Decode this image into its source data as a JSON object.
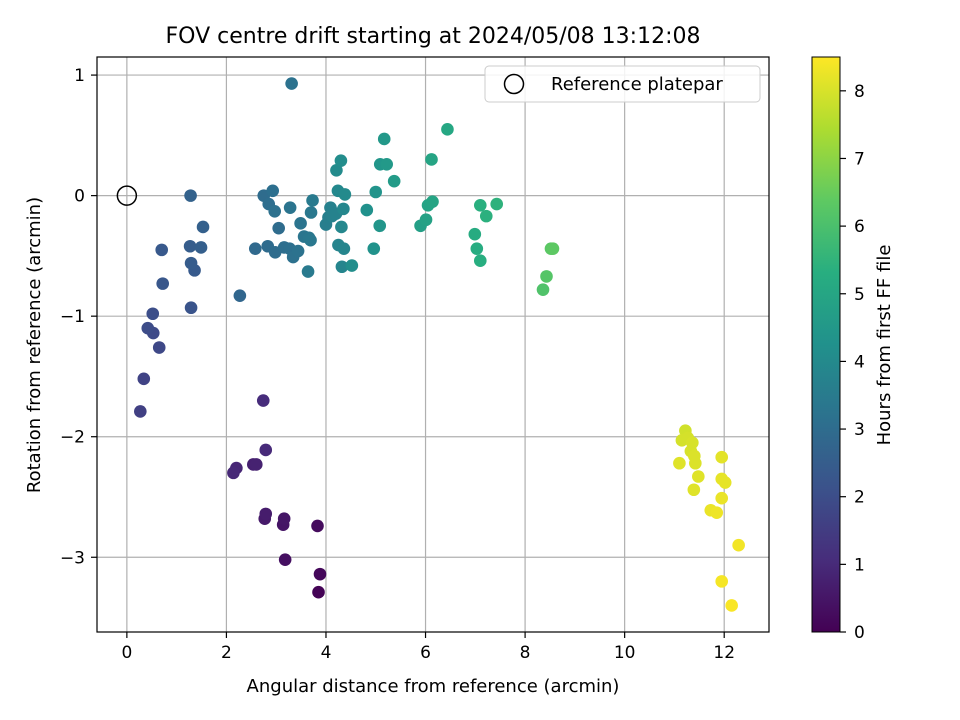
{
  "chart_data": {
    "type": "scatter",
    "title": "FOV centre drift starting at 2024/05/08 13:12:08",
    "xlabel": "Angular distance from reference (arcmin)",
    "ylabel": "Rotation from reference (arcmin)",
    "colorbar_label": "Hours from first FF file",
    "colormap": "viridis",
    "xlim": [
      -0.6,
      12.9
    ],
    "ylim": [
      -3.62,
      1.15
    ],
    "clim": [
      0,
      8.5
    ],
    "x_ticks": [
      0,
      2,
      4,
      6,
      8,
      10,
      12
    ],
    "y_ticks": [
      -3,
      -2,
      -1,
      0,
      1
    ],
    "colorbar_ticks": [
      0,
      1,
      2,
      3,
      4,
      5,
      6,
      7,
      8
    ],
    "grid": true,
    "legend": {
      "placement": "top-right",
      "entries": [
        {
          "label": "Reference platepar",
          "marker": "open-circle"
        }
      ]
    },
    "reference_point": {
      "x": 0,
      "y": 0
    },
    "points": [
      {
        "x": 3.85,
        "y": -3.29,
        "c": 0.05
      },
      {
        "x": 3.88,
        "y": -3.14,
        "c": 0.15
      },
      {
        "x": 3.83,
        "y": -2.74,
        "c": 0.25
      },
      {
        "x": 3.18,
        "y": -3.02,
        "c": 0.35
      },
      {
        "x": 3.14,
        "y": -2.73,
        "c": 0.45
      },
      {
        "x": 3.16,
        "y": -2.68,
        "c": 0.5
      },
      {
        "x": 2.77,
        "y": -2.68,
        "c": 0.6
      },
      {
        "x": 2.79,
        "y": -2.64,
        "c": 0.65
      },
      {
        "x": 2.54,
        "y": -2.23,
        "c": 0.75
      },
      {
        "x": 2.6,
        "y": -2.23,
        "c": 0.8
      },
      {
        "x": 2.2,
        "y": -2.26,
        "c": 0.9
      },
      {
        "x": 2.14,
        "y": -2.3,
        "c": 0.95
      },
      {
        "x": 2.79,
        "y": -2.11,
        "c": 1.0
      },
      {
        "x": 2.74,
        "y": -1.7,
        "c": 1.05
      },
      {
        "x": 0.27,
        "y": -1.79,
        "c": 1.6
      },
      {
        "x": 0.34,
        "y": -1.52,
        "c": 1.7
      },
      {
        "x": 0.65,
        "y": -1.26,
        "c": 1.85
      },
      {
        "x": 0.53,
        "y": -1.14,
        "c": 1.9
      },
      {
        "x": 0.42,
        "y": -1.1,
        "c": 1.95
      },
      {
        "x": 0.52,
        "y": -0.98,
        "c": 2.0
      },
      {
        "x": 1.29,
        "y": -0.93,
        "c": 2.2
      },
      {
        "x": 0.72,
        "y": -0.73,
        "c": 2.3
      },
      {
        "x": 0.7,
        "y": -0.45,
        "c": 2.35
      },
      {
        "x": 1.36,
        "y": -0.62,
        "c": 2.4
      },
      {
        "x": 1.29,
        "y": -0.56,
        "c": 2.45
      },
      {
        "x": 1.27,
        "y": -0.42,
        "c": 2.5
      },
      {
        "x": 1.49,
        "y": -0.43,
        "c": 2.55
      },
      {
        "x": 1.53,
        "y": -0.26,
        "c": 2.6
      },
      {
        "x": 1.28,
        "y": 0.0,
        "c": 2.65
      },
      {
        "x": 2.27,
        "y": -0.83,
        "c": 2.8
      },
      {
        "x": 2.58,
        "y": -0.44,
        "c": 2.9
      },
      {
        "x": 2.83,
        "y": -0.42,
        "c": 2.95
      },
      {
        "x": 2.98,
        "y": -0.47,
        "c": 3.0
      },
      {
        "x": 3.05,
        "y": -0.27,
        "c": 3.0
      },
      {
        "x": 3.16,
        "y": -0.43,
        "c": 3.05
      },
      {
        "x": 3.27,
        "y": -0.44,
        "c": 3.1
      },
      {
        "x": 3.34,
        "y": -0.51,
        "c": 3.15
      },
      {
        "x": 3.44,
        "y": -0.46,
        "c": 3.2
      },
      {
        "x": 3.49,
        "y": -0.23,
        "c": 3.25
      },
      {
        "x": 3.56,
        "y": -0.34,
        "c": 3.3
      },
      {
        "x": 3.66,
        "y": -0.35,
        "c": 3.35
      },
      {
        "x": 3.69,
        "y": -0.37,
        "c": 3.4
      },
      {
        "x": 3.64,
        "y": -0.63,
        "c": 3.45
      },
      {
        "x": 2.75,
        "y": 0.0,
        "c": 3.0
      },
      {
        "x": 2.85,
        "y": -0.07,
        "c": 3.05
      },
      {
        "x": 2.93,
        "y": 0.04,
        "c": 3.1
      },
      {
        "x": 2.97,
        "y": -0.13,
        "c": 3.15
      },
      {
        "x": 3.28,
        "y": -0.1,
        "c": 3.25
      },
      {
        "x": 3.7,
        "y": -0.14,
        "c": 3.4
      },
      {
        "x": 3.73,
        "y": -0.04,
        "c": 3.45
      },
      {
        "x": 3.31,
        "y": 0.93,
        "c": 3.2
      },
      {
        "x": 4.0,
        "y": -0.24,
        "c": 3.6
      },
      {
        "x": 4.05,
        "y": -0.18,
        "c": 3.65
      },
      {
        "x": 4.09,
        "y": -0.1,
        "c": 3.7
      },
      {
        "x": 4.12,
        "y": -0.17,
        "c": 3.7
      },
      {
        "x": 4.2,
        "y": -0.15,
        "c": 3.75
      },
      {
        "x": 4.25,
        "y": -0.41,
        "c": 3.8
      },
      {
        "x": 4.32,
        "y": -0.59,
        "c": 3.85
      },
      {
        "x": 4.36,
        "y": -0.44,
        "c": 3.85
      },
      {
        "x": 4.31,
        "y": -0.26,
        "c": 3.9
      },
      {
        "x": 4.35,
        "y": -0.11,
        "c": 3.9
      },
      {
        "x": 4.24,
        "y": 0.04,
        "c": 3.95
      },
      {
        "x": 4.38,
        "y": 0.01,
        "c": 4.0
      },
      {
        "x": 4.21,
        "y": 0.21,
        "c": 4.05
      },
      {
        "x": 4.3,
        "y": 0.29,
        "c": 4.1
      },
      {
        "x": 4.52,
        "y": -0.58,
        "c": 4.15
      },
      {
        "x": 4.82,
        "y": -0.12,
        "c": 4.25
      },
      {
        "x": 4.96,
        "y": -0.44,
        "c": 4.3
      },
      {
        "x": 5.0,
        "y": 0.03,
        "c": 4.35
      },
      {
        "x": 5.08,
        "y": -0.25,
        "c": 4.4
      },
      {
        "x": 5.09,
        "y": 0.26,
        "c": 4.45
      },
      {
        "x": 5.17,
        "y": 0.47,
        "c": 4.5
      },
      {
        "x": 5.22,
        "y": 0.26,
        "c": 4.55
      },
      {
        "x": 5.37,
        "y": 0.12,
        "c": 4.6
      },
      {
        "x": 5.9,
        "y": -0.25,
        "c": 4.75
      },
      {
        "x": 6.01,
        "y": -0.2,
        "c": 4.85
      },
      {
        "x": 6.05,
        "y": -0.08,
        "c": 4.9
      },
      {
        "x": 6.14,
        "y": -0.05,
        "c": 4.95
      },
      {
        "x": 6.12,
        "y": 0.3,
        "c": 4.95
      },
      {
        "x": 6.44,
        "y": 0.55,
        "c": 5.05
      },
      {
        "x": 6.99,
        "y": -0.32,
        "c": 5.2
      },
      {
        "x": 7.03,
        "y": -0.44,
        "c": 5.25
      },
      {
        "x": 7.1,
        "y": -0.54,
        "c": 5.3
      },
      {
        "x": 7.1,
        "y": -0.08,
        "c": 5.35
      },
      {
        "x": 7.22,
        "y": -0.17,
        "c": 5.4
      },
      {
        "x": 7.43,
        "y": -0.07,
        "c": 5.45
      },
      {
        "x": 8.36,
        "y": -0.78,
        "c": 6.1
      },
      {
        "x": 8.43,
        "y": -0.67,
        "c": 6.2
      },
      {
        "x": 8.52,
        "y": -0.44,
        "c": 6.3
      },
      {
        "x": 8.56,
        "y": -0.44,
        "c": 6.35
      },
      {
        "x": 11.22,
        "y": -1.95,
        "c": 7.9
      },
      {
        "x": 11.15,
        "y": -2.03,
        "c": 7.95
      },
      {
        "x": 11.27,
        "y": -2.01,
        "c": 7.95
      },
      {
        "x": 11.36,
        "y": -2.05,
        "c": 8.0
      },
      {
        "x": 11.33,
        "y": -2.12,
        "c": 8.0
      },
      {
        "x": 11.4,
        "y": -2.16,
        "c": 8.05
      },
      {
        "x": 11.42,
        "y": -2.22,
        "c": 8.05
      },
      {
        "x": 11.1,
        "y": -2.22,
        "c": 8.1
      },
      {
        "x": 11.48,
        "y": -2.33,
        "c": 8.1
      },
      {
        "x": 11.39,
        "y": -2.44,
        "c": 8.1
      },
      {
        "x": 11.95,
        "y": -2.17,
        "c": 8.15
      },
      {
        "x": 11.95,
        "y": -2.35,
        "c": 8.2
      },
      {
        "x": 12.02,
        "y": -2.38,
        "c": 8.2
      },
      {
        "x": 11.95,
        "y": -2.51,
        "c": 8.25
      },
      {
        "x": 11.73,
        "y": -2.61,
        "c": 8.25
      },
      {
        "x": 11.85,
        "y": -2.63,
        "c": 8.3
      },
      {
        "x": 12.29,
        "y": -2.9,
        "c": 8.35
      },
      {
        "x": 11.95,
        "y": -3.2,
        "c": 8.4
      },
      {
        "x": 12.15,
        "y": -3.4,
        "c": 8.45
      }
    ]
  }
}
